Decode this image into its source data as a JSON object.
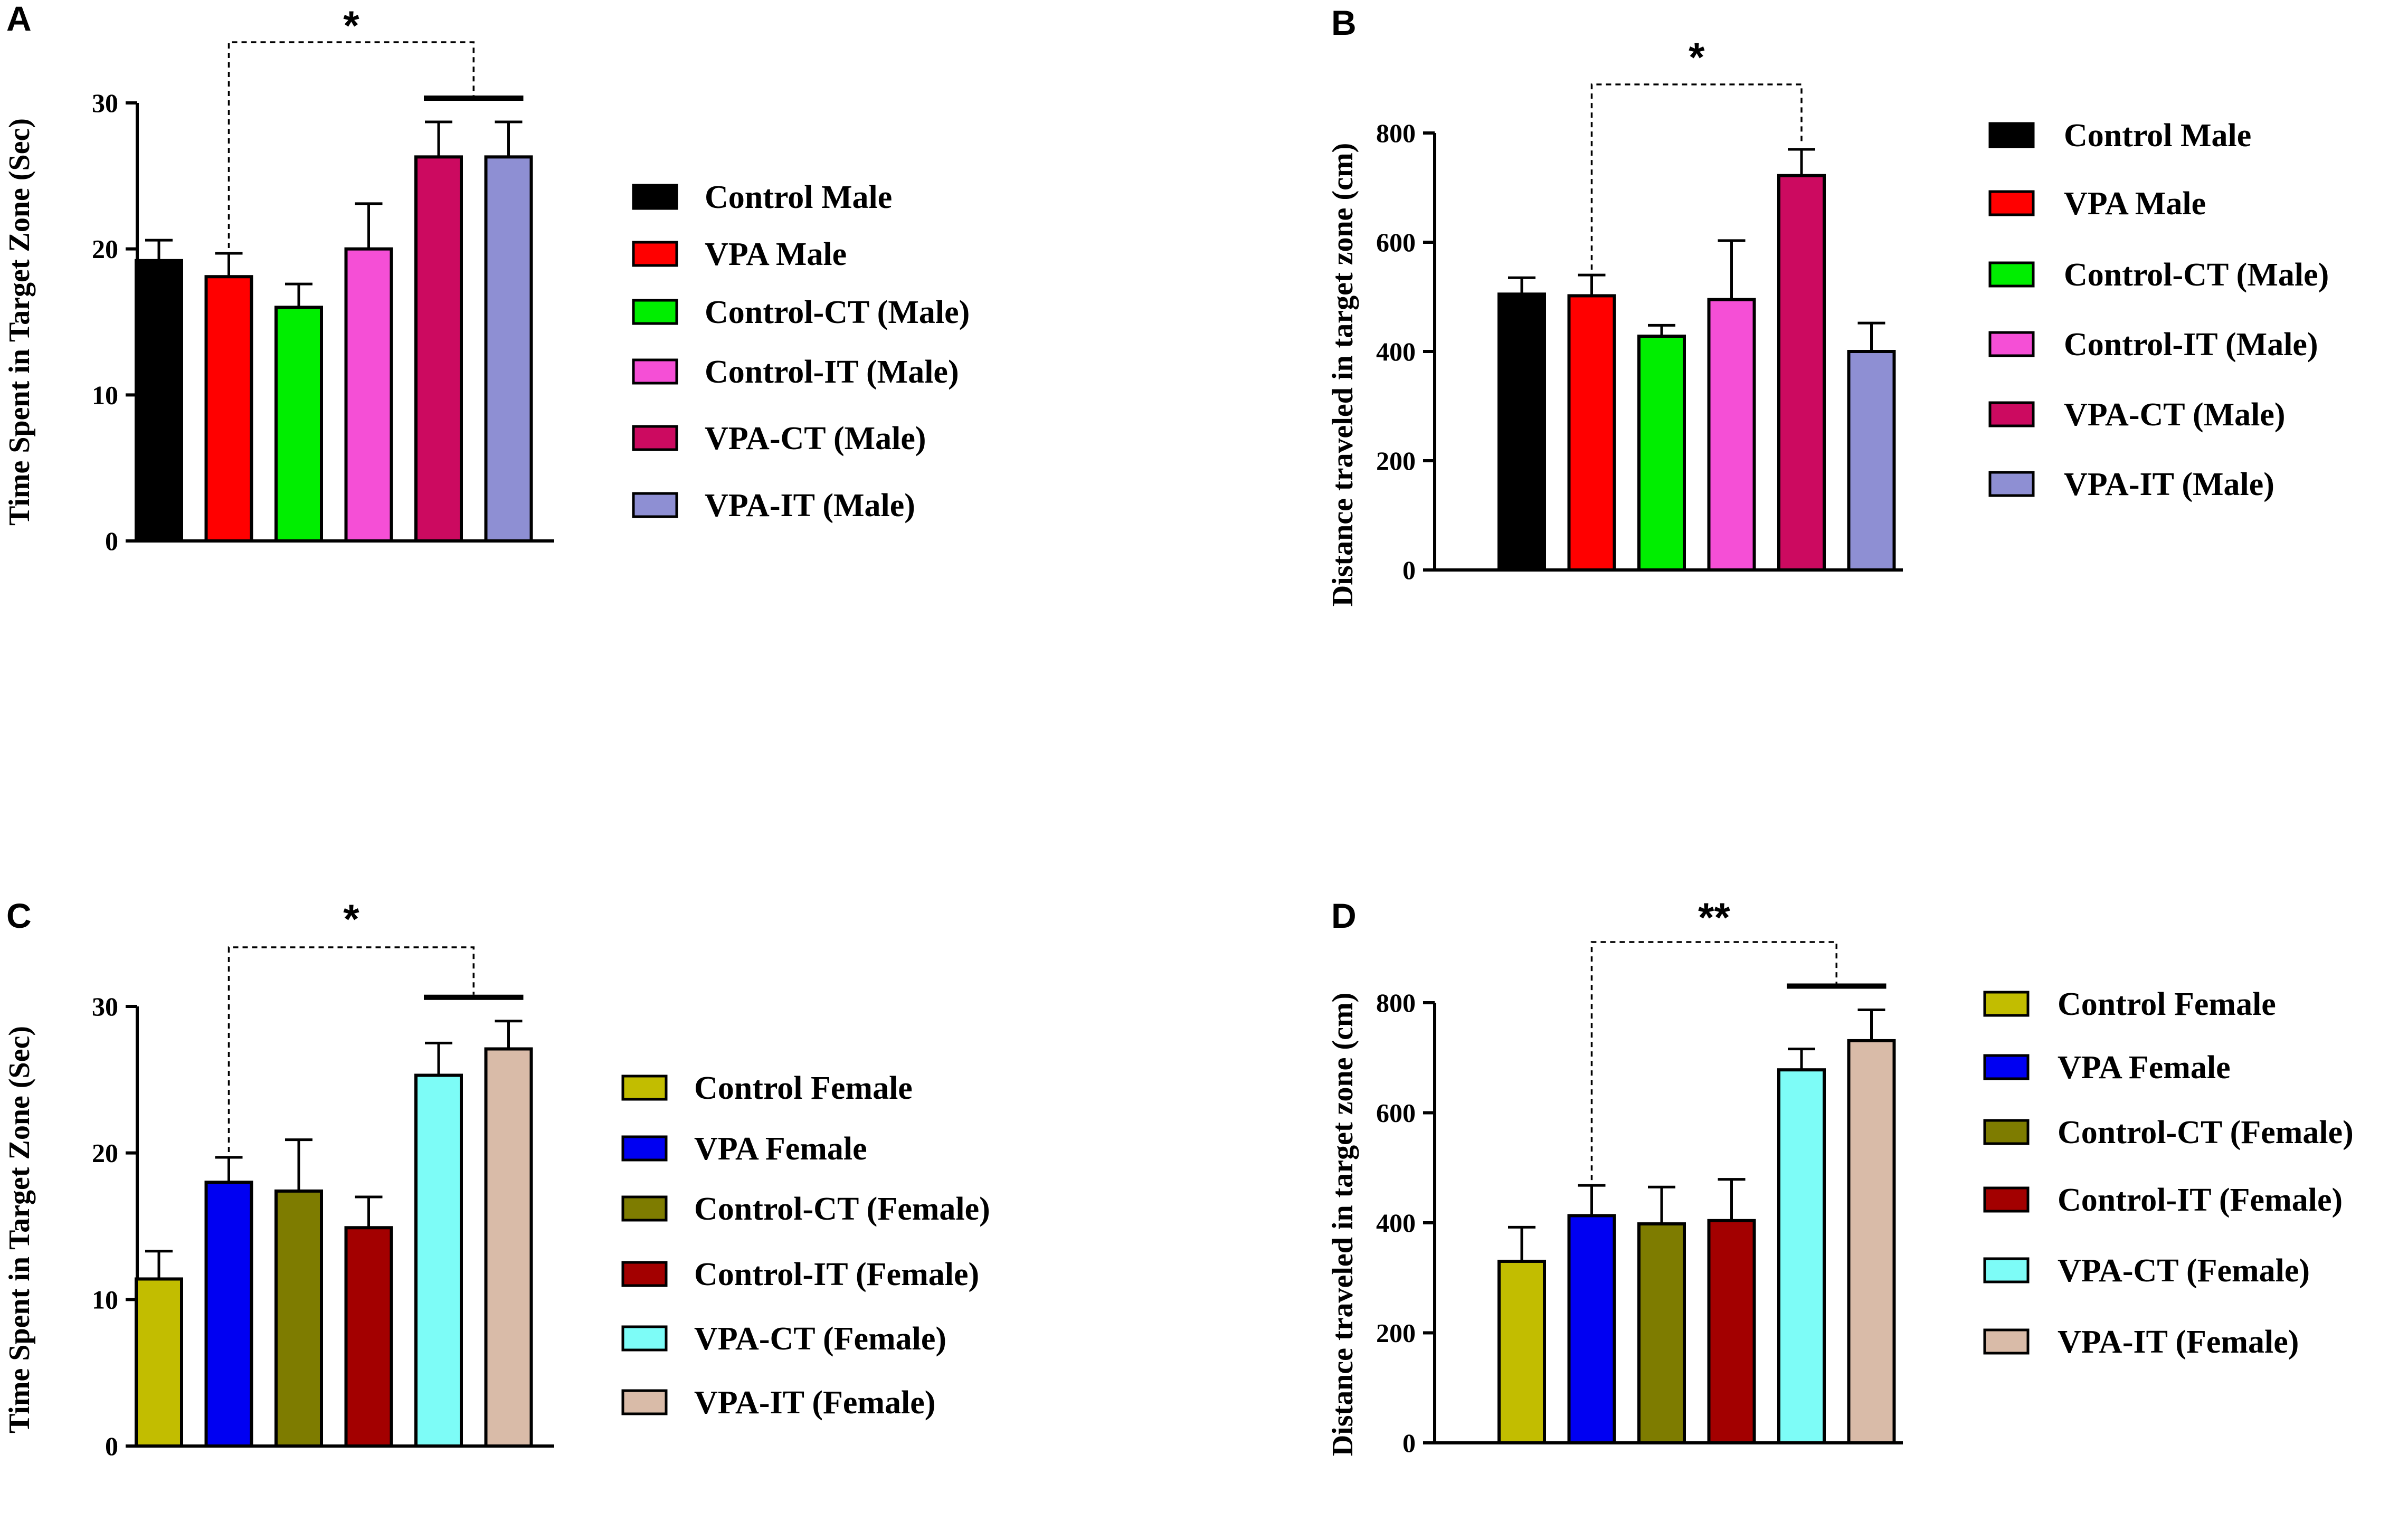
{
  "chart_data": [
    {
      "type": "bar",
      "panel": "A",
      "ylabel": "Time Spent in Target Zone (Sec)",
      "ylim": [
        0,
        30
      ],
      "yticks": [
        "0",
        "10",
        "20",
        "30"
      ],
      "categories": [
        "Control Male",
        "VPA Male",
        "Control-CT (Male)",
        "Control-IT (Male)",
        "VPA-CT (Male)",
        "VPA-IT (Male)"
      ],
      "values": [
        19.2,
        18.1,
        16.0,
        20.0,
        26.3,
        26.3
      ],
      "errors": [
        1.4,
        1.6,
        1.6,
        3.1,
        2.4,
        2.4
      ],
      "colors": [
        "#000000",
        "#ff0000",
        "#00ee00",
        "#f54fd6",
        "#cc0a60",
        "#8e8fd3"
      ],
      "significance": {
        "label": "*",
        "from_index": 1,
        "to_group": [
          4,
          5
        ]
      }
    },
    {
      "type": "bar",
      "panel": "B",
      "ylabel": "Distance traveled in target zone (cm)",
      "ylim": [
        0,
        800
      ],
      "yticks": [
        "0",
        "200",
        "400",
        "600",
        "800"
      ],
      "categories": [
        "Control Male",
        "VPA Male",
        "Control-CT (Male)",
        "Control-IT (Male)",
        "VPA-CT (Male)",
        "VPA-IT (Male)"
      ],
      "values": [
        505,
        502,
        428,
        495,
        722,
        400
      ],
      "errors": [
        30,
        38,
        20,
        108,
        48,
        52
      ],
      "colors": [
        "#000000",
        "#ff0000",
        "#00ee00",
        "#f54fd6",
        "#cc0a60",
        "#8e8fd3"
      ],
      "significance": {
        "label": "*",
        "from_index": 1,
        "to_index": 4
      }
    },
    {
      "type": "bar",
      "panel": "C",
      "ylabel": "Time Spent in Target Zone (Sec)",
      "ylim": [
        0,
        30
      ],
      "yticks": [
        "0",
        "10",
        "20",
        "30"
      ],
      "categories": [
        "Control Female",
        "VPA Female",
        "Control-CT (Female)",
        "Control-IT (Female)",
        "VPA-CT (Female)",
        "VPA-IT (Female)"
      ],
      "values": [
        11.4,
        18.0,
        17.4,
        14.9,
        25.3,
        27.1
      ],
      "errors": [
        1.9,
        1.7,
        3.5,
        2.1,
        2.2,
        1.9
      ],
      "colors": [
        "#c2bd00",
        "#0000f2",
        "#7e7c00",
        "#a30000",
        "#7dfcf7",
        "#d9bba8"
      ],
      "significance": {
        "label": "*",
        "from_index": 1,
        "to_group": [
          4,
          5
        ]
      }
    },
    {
      "type": "bar",
      "panel": "D",
      "ylabel": "Distance traveled in target zone (cm)",
      "ylim": [
        0,
        800
      ],
      "yticks": [
        "0",
        "200",
        "400",
        "600",
        "800"
      ],
      "categories": [
        "Control Female",
        "VPA Female",
        "Control-CT (Female)",
        "Control-IT (Female)",
        "VPA-CT (Female)",
        "VPA-IT (Female)"
      ],
      "values": [
        330,
        413,
        398,
        404,
        678,
        731
      ],
      "errors": [
        62,
        55,
        67,
        75,
        38,
        56
      ],
      "colors": [
        "#c2bd00",
        "#0000f2",
        "#7e7c00",
        "#a30000",
        "#7dfcf7",
        "#d9bba8"
      ],
      "significance": {
        "label": "**",
        "from_index": 1,
        "to_group": [
          4,
          5
        ]
      }
    }
  ]
}
